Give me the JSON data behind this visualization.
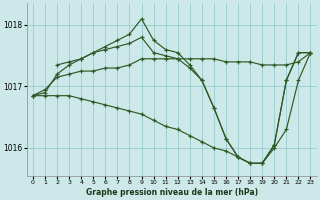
{
  "xlabel": "Graphe pression niveau de la mer (hPa)",
  "bg_color": "#cce8e8",
  "grid_color": "#99cccc",
  "line_color": "#2d5a27",
  "xlim": [
    -0.5,
    23.5
  ],
  "ylim": [
    1015.55,
    1018.35
  ],
  "yticks": [
    1016,
    1017,
    1018
  ],
  "xticks": [
    0,
    1,
    2,
    3,
    4,
    5,
    6,
    7,
    8,
    9,
    10,
    11,
    12,
    13,
    14,
    15,
    16,
    17,
    18,
    19,
    20,
    21,
    22,
    23
  ],
  "series": [
    {
      "x": [
        0,
        1,
        2,
        3,
        4,
        5,
        6,
        7,
        8,
        9,
        10,
        11,
        12,
        13,
        14,
        15,
        16,
        17,
        18,
        19,
        20,
        21,
        22,
        23
      ],
      "y": [
        1016.85,
        1016.95,
        1017.15,
        1017.2,
        1017.25,
        1017.25,
        1017.3,
        1017.3,
        1017.35,
        1017.45,
        1017.45,
        1017.45,
        1017.45,
        1017.45,
        1017.45,
        1017.45,
        1017.4,
        1017.4,
        1017.4,
        1017.35,
        1017.35,
        1017.35,
        1017.4,
        1017.55
      ]
    },
    {
      "x": [
        0,
        1,
        2,
        3,
        4,
        5,
        6,
        7,
        8,
        9,
        10,
        11,
        12,
        13,
        14,
        15,
        16,
        17,
        18,
        19,
        20,
        21,
        22,
        23
      ],
      "y": [
        1016.85,
        1016.9,
        1017.2,
        1017.35,
        1017.45,
        1017.55,
        1017.65,
        1017.75,
        1017.85,
        1018.1,
        1017.75,
        1017.6,
        1017.55,
        1017.35,
        1017.1,
        1016.65,
        1016.15,
        1015.85,
        1015.75,
        1015.75,
        1016.05,
        1017.1,
        1017.55,
        1017.55
      ]
    },
    {
      "x": [
        0,
        1,
        2,
        3,
        4,
        5,
        6,
        7,
        8,
        9,
        10,
        11,
        12,
        13,
        14,
        15,
        16,
        17,
        18,
        19,
        20,
        21,
        22,
        23
      ],
      "y": [
        1016.85,
        1016.85,
        1016.85,
        1016.85,
        1016.8,
        1016.75,
        1016.7,
        1016.65,
        1016.6,
        1016.55,
        1016.45,
        1016.35,
        1016.3,
        1016.2,
        1016.1,
        1016.0,
        1015.95,
        1015.85,
        1015.75,
        1015.75,
        1016.0,
        1016.3,
        1017.1,
        1017.55
      ]
    },
    {
      "x": [
        2,
        3,
        4,
        5,
        6,
        7,
        8,
        9,
        10,
        11,
        12,
        13,
        14,
        15,
        16,
        17,
        18,
        19,
        20,
        21,
        22,
        23
      ],
      "y": [
        1017.35,
        1017.4,
        1017.45,
        1017.55,
        1017.6,
        1017.65,
        1017.7,
        1017.8,
        1017.55,
        1017.5,
        1017.45,
        1017.3,
        1017.1,
        1016.65,
        1016.15,
        1015.85,
        1015.75,
        1015.75,
        1016.05,
        1017.1,
        1017.55,
        1017.55
      ]
    }
  ]
}
